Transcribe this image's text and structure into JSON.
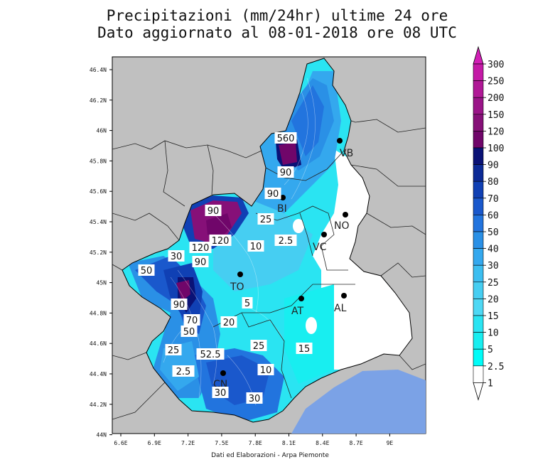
{
  "title": {
    "line1": "Precipitazioni (mm/24hr) ultime 24 ore",
    "line2": "Dato aggiornato al 08-01-2018 ore 08 UTC"
  },
  "credit": "Dati ed Elaborazioni - Arpa Piemonte",
  "axes": {
    "lat_ticks": [
      "46.4N",
      "46.2N",
      "46N",
      "45.8N",
      "45.6N",
      "45.4N",
      "45.2N",
      "45N",
      "44.8N",
      "44.6N",
      "44.4N",
      "44.2N",
      "44N"
    ],
    "lon_ticks": [
      "6.6E",
      "6.9E",
      "7.2E",
      "7.5E",
      "7.8E",
      "8.1E",
      "8.4E",
      "8.7E",
      "9E"
    ]
  },
  "colorbar": {
    "levels": [
      "300",
      "250",
      "200",
      "150",
      "120",
      "100",
      "90",
      "80",
      "70",
      "60",
      "50",
      "40",
      "30",
      "25",
      "20",
      "15",
      "10",
      "5",
      "2.5",
      "1"
    ],
    "colors": [
      "#d21fb6",
      "#c41aa6",
      "#b01896",
      "#9a1488",
      "#861078",
      "#70066a",
      "#0a1276",
      "#0c2a96",
      "#1040b4",
      "#1a58cc",
      "#2274de",
      "#2a90e6",
      "#34a8ee",
      "#3cbef0",
      "#46cef2",
      "#4ed8f4",
      "#2ae4f2",
      "#18eef0",
      "#00fcf8",
      "#ffffff"
    ]
  },
  "cities": [
    {
      "code": "VB"
    },
    {
      "code": "BI"
    },
    {
      "code": "NO"
    },
    {
      "code": "VC"
    },
    {
      "code": "TO"
    },
    {
      "code": "AT"
    },
    {
      "code": "AL"
    },
    {
      "code": "CN"
    }
  ],
  "contour_labels": [
    "560",
    "90",
    "90",
    "90",
    "120",
    "120",
    "90",
    "30",
    "50",
    "90",
    "10",
    "2.5",
    "5",
    "20",
    "70",
    "50",
    "25",
    "52.5",
    "25",
    "15",
    "2.5",
    "10",
    "30",
    "30",
    "25"
  ],
  "colors": {
    "background_outside": "#c0c0c0",
    "sea": "#7ba2e6",
    "border_line": "#000000"
  }
}
